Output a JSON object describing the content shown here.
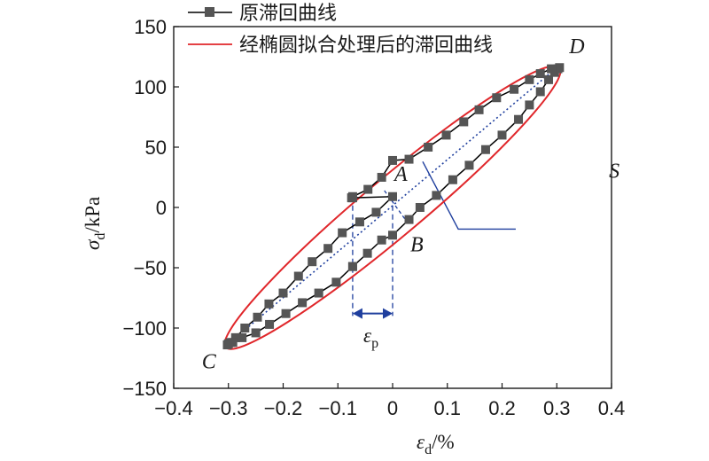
{
  "chart_data": {
    "type": "line",
    "xlabel_symbol": "ε",
    "xlabel_sub": "d",
    "xlabel_unit": "/%",
    "ylabel_symbol": "σ",
    "ylabel_sub": "d",
    "ylabel_unit": "/kPa",
    "xlim": [
      -0.4,
      0.4
    ],
    "ylim": [
      -150,
      150
    ],
    "xticks": [
      "−0.4",
      "−0.3",
      "−0.2",
      "−0.1",
      "0",
      "0.1",
      "0.2",
      "0.3",
      "0.4"
    ],
    "yticks": [
      "−150",
      "−100",
      "−50",
      "0",
      "50",
      "100",
      "150"
    ],
    "xtick_values": [
      -0.4,
      -0.3,
      -0.2,
      -0.1,
      0,
      0.1,
      0.2,
      0.3,
      0.4
    ],
    "ytick_values": [
      -150,
      -100,
      -50,
      0,
      50,
      100,
      150
    ],
    "legend_position": "top-left",
    "series": [
      {
        "name": "原滞回曲线",
        "color": "#000000",
        "marker": "square",
        "marker_color": "#555555",
        "points": [
          [
            -0.073,
            -49
          ],
          [
            -0.046,
            -38
          ],
          [
            -0.02,
            -27
          ],
          [
            0.0,
            -23
          ],
          [
            0.03,
            -10
          ],
          [
            0.05,
            0
          ],
          [
            0.08,
            10
          ],
          [
            0.11,
            23
          ],
          [
            0.14,
            35
          ],
          [
            0.17,
            48
          ],
          [
            0.2,
            60
          ],
          [
            0.23,
            73
          ],
          [
            0.25,
            85
          ],
          [
            0.27,
            96
          ],
          [
            0.285,
            106
          ],
          [
            0.296,
            112
          ],
          [
            0.302,
            115
          ],
          [
            0.305,
            116
          ],
          [
            0.29,
            115
          ],
          [
            0.27,
            111
          ],
          [
            0.25,
            106
          ],
          [
            0.222,
            98
          ],
          [
            0.19,
            91
          ],
          [
            0.158,
            81
          ],
          [
            0.13,
            71
          ],
          [
            0.098,
            60
          ],
          [
            0.065,
            50
          ],
          [
            0.03,
            40
          ],
          [
            0.0,
            39
          ],
          [
            -0.02,
            25
          ],
          [
            -0.045,
            15
          ],
          [
            -0.073,
            9
          ],
          [
            -0.075,
            8
          ],
          [
            -0.073,
            8
          ],
          [
            0.0,
            9
          ],
          [
            -0.03,
            -4
          ],
          [
            -0.06,
            -12
          ],
          [
            -0.092,
            -21
          ],
          [
            -0.118,
            -34
          ],
          [
            -0.147,
            -45
          ],
          [
            -0.172,
            -57
          ],
          [
            -0.2,
            -71
          ],
          [
            -0.226,
            -80
          ],
          [
            -0.247,
            -91
          ],
          [
            -0.27,
            -100
          ],
          [
            -0.287,
            -108
          ],
          [
            -0.296,
            -112
          ],
          [
            -0.3,
            -113
          ],
          [
            -0.302,
            -114
          ],
          [
            -0.292,
            -112
          ],
          [
            -0.275,
            -108
          ],
          [
            -0.25,
            -104
          ],
          [
            -0.225,
            -97
          ],
          [
            -0.195,
            -88
          ],
          [
            -0.165,
            -79
          ],
          [
            -0.135,
            -71
          ],
          [
            -0.103,
            -62
          ],
          [
            -0.073,
            -49
          ]
        ]
      },
      {
        "name": "经椭圆拟合处理后的滞回曲线",
        "color": "#e0262a",
        "ellipse": {
          "cx": 0.0,
          "cy": 0.0,
          "a": 0.305,
          "b_value": 116,
          "width_value": 16
        }
      }
    ],
    "annotations": [
      {
        "text": "A",
        "x": 0.0,
        "y": 9
      },
      {
        "text": "B",
        "x": 0.0,
        "y": -23
      },
      {
        "text": "C",
        "x": -0.3,
        "y": -113
      },
      {
        "text": "D",
        "x": 0.3,
        "y": 116
      },
      {
        "text": "S",
        "x": 0.12,
        "y": 35
      }
    ],
    "strain_label_symbol": "ε",
    "strain_label_sub": "p",
    "strain_bracket": [
      -0.073,
      0.0
    ]
  }
}
